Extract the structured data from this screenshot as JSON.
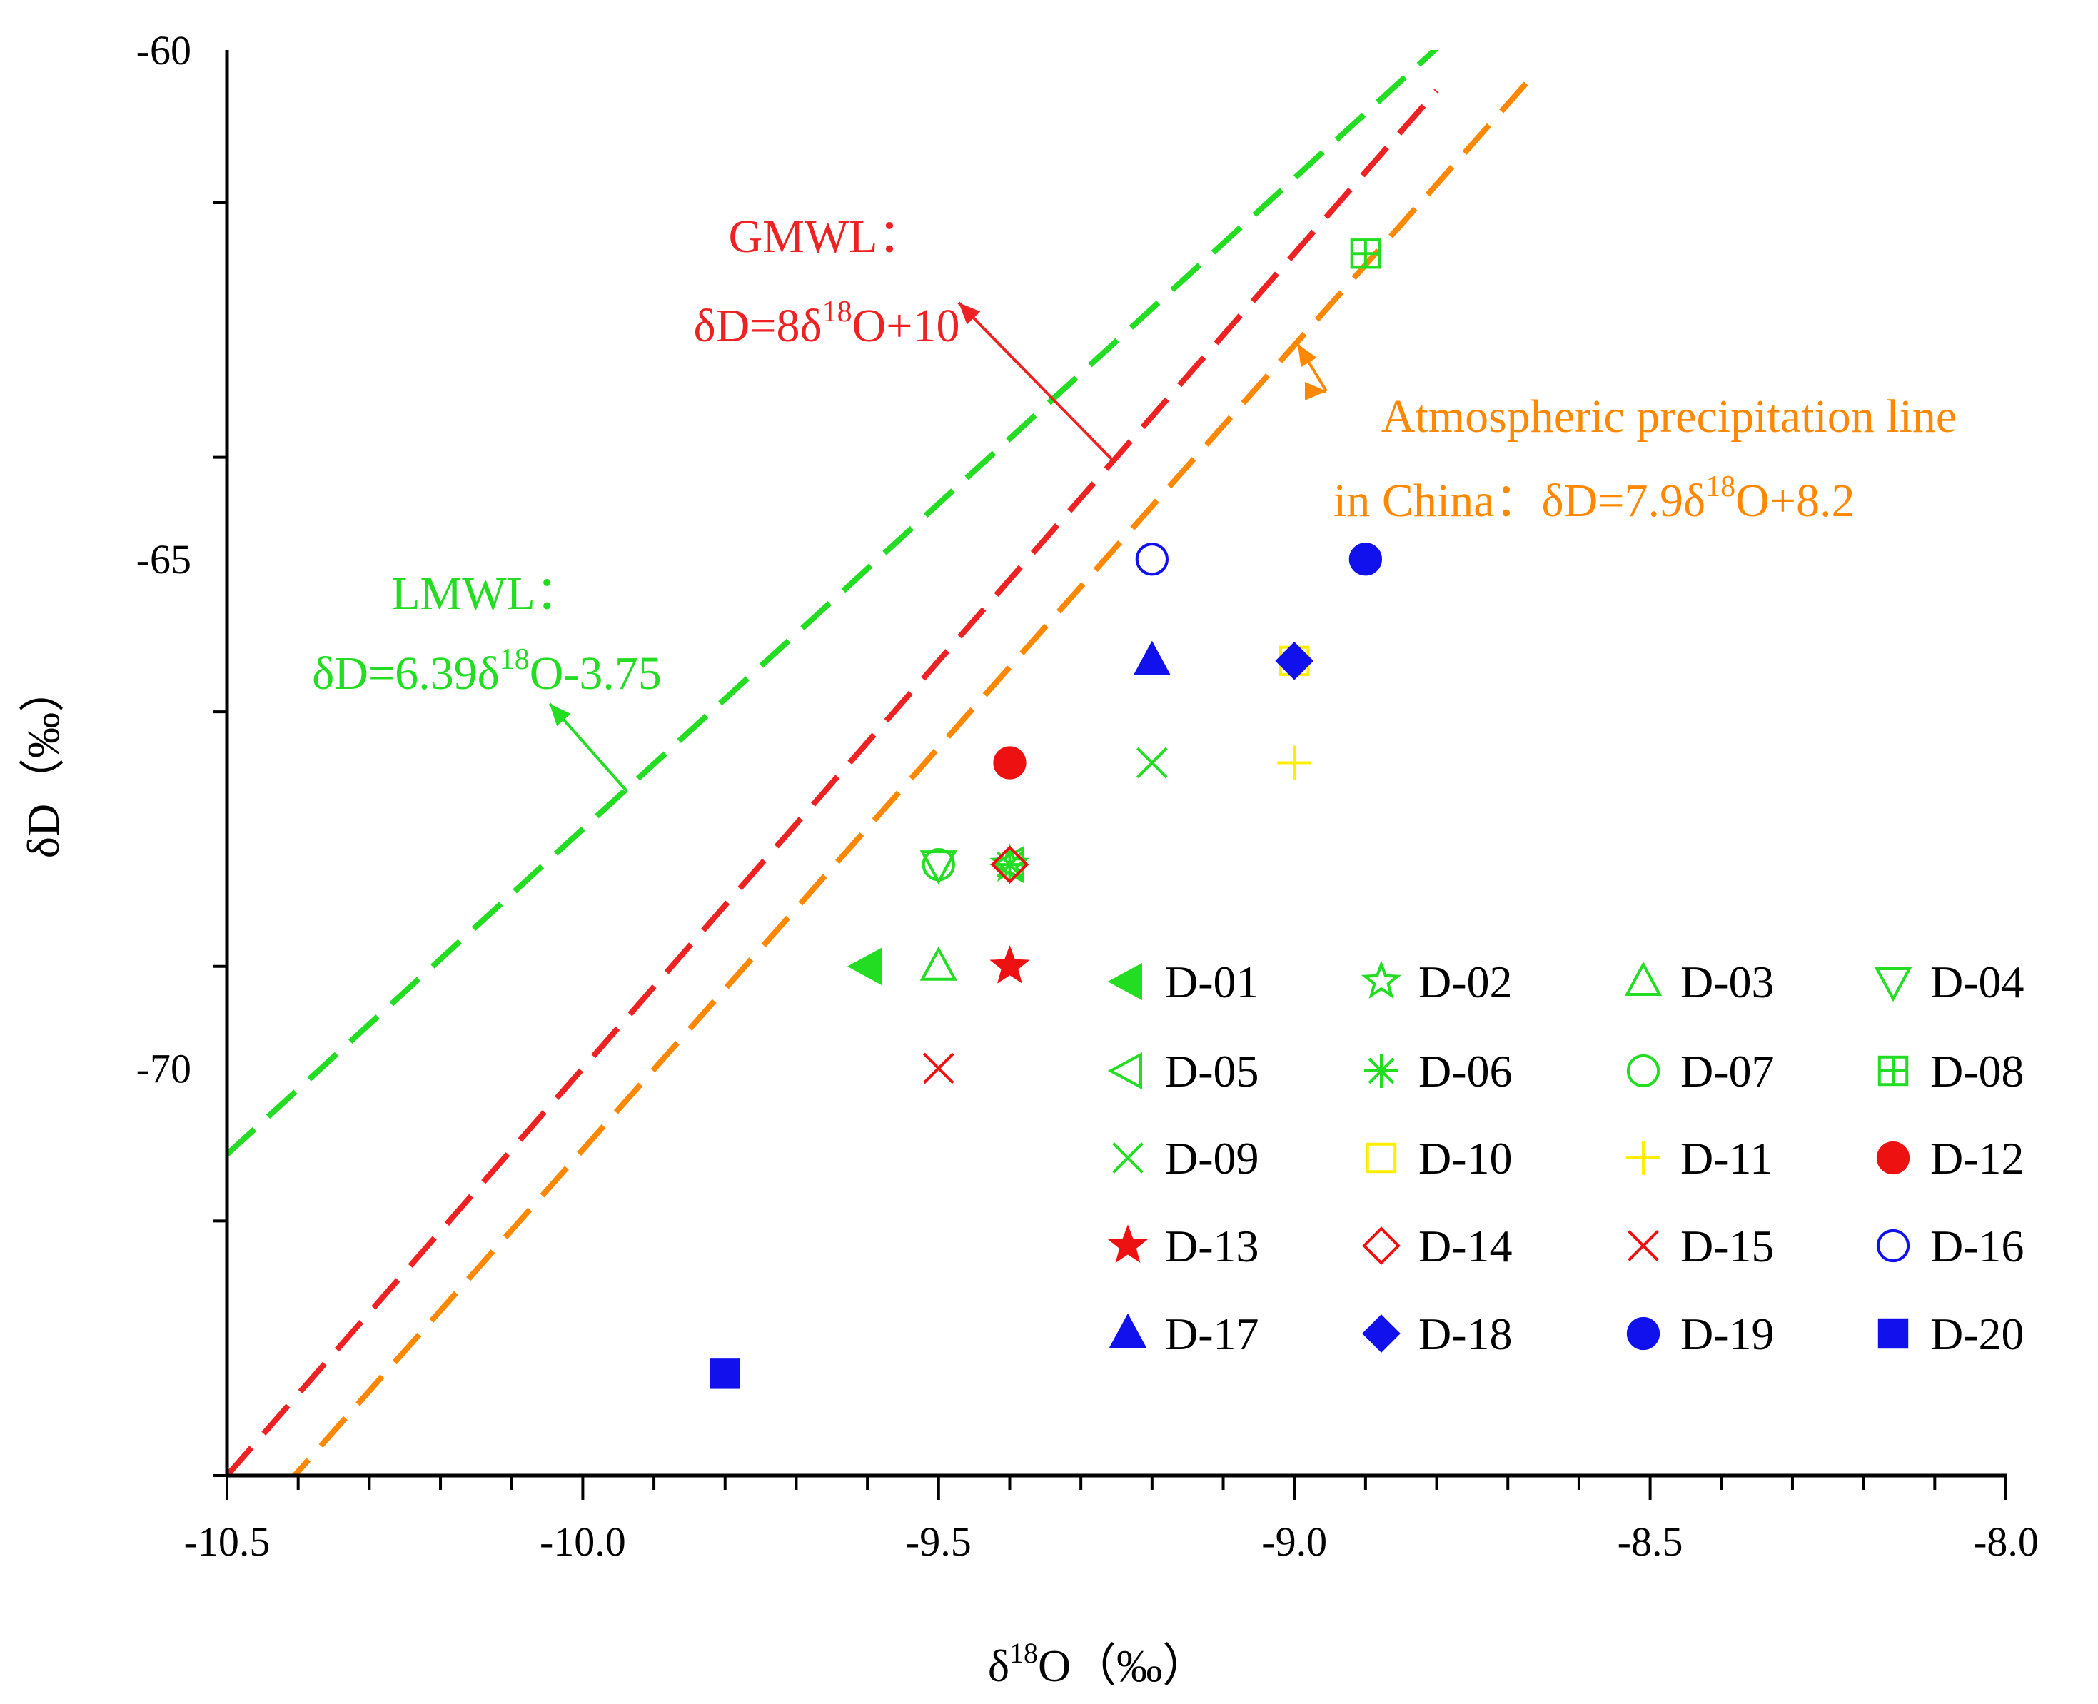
{
  "chart_data": {
    "type": "scatter",
    "xlabel": {
      "prefix": "δ",
      "sup": "18",
      "main": "O（‰）"
    },
    "ylabel": "δD（‰）",
    "xlim": [
      -10.5,
      -8.0
    ],
    "ylim": [
      -74,
      -60
    ],
    "xticks": [
      {
        "value": -10.5,
        "label": "-10.5"
      },
      {
        "value": -10.0,
        "label": "-10.0"
      },
      {
        "value": -9.5,
        "label": "-9.5"
      },
      {
        "value": -9.0,
        "label": "-9.0"
      },
      {
        "value": -8.5,
        "label": "-8.5"
      },
      {
        "value": -8.0,
        "label": "-8.0"
      }
    ],
    "yticks": [
      {
        "value": -60,
        "label": "-60"
      },
      {
        "value": -65,
        "label": "-65"
      },
      {
        "value": -70,
        "label": "-70"
      }
    ],
    "lines": [
      {
        "name": "LMWL",
        "slope": 6.39,
        "intercept": -3.75,
        "color": "#22dd22",
        "x_range": [
          -10.5,
          -8.79
        ]
      },
      {
        "name": "GMWL",
        "slope": 8.0,
        "intercept": 10.0,
        "color": "#ee2222",
        "x_range": [
          -10.5,
          -8.8
        ]
      },
      {
        "name": "Atmospheric precipitation line in China",
        "slope": 7.9,
        "intercept": 8.2,
        "color": "#ff8800",
        "x_range": [
          -10.42,
          -8.66
        ]
      }
    ],
    "annotations": [
      {
        "id": "gmwl",
        "color": "#ee2222",
        "lines": [
          {
            "text": "GMWL："
          },
          {
            "pre": "δD=8δ",
            "sup": "18",
            "post": "O+10"
          }
        ]
      },
      {
        "id": "china",
        "color": "#ff8800",
        "lines": [
          {
            "text": "Atmospheric precipitation line"
          },
          {
            "pre": "in China：δD=7.9δ",
            "sup": "18",
            "post": "O+8.2"
          }
        ]
      },
      {
        "id": "lmwl",
        "color": "#22dd22",
        "lines": [
          {
            "text": "LMWL："
          },
          {
            "pre": "δD=6.39δ",
            "sup": "18",
            "post": "O-3.75"
          }
        ]
      }
    ],
    "series": [
      {
        "name": "D-01",
        "marker": "tri-left",
        "filled": true,
        "color": "#22dd22",
        "x": -9.6,
        "y": -69.0
      },
      {
        "name": "D-02",
        "marker": "star",
        "filled": false,
        "color": "#22dd22",
        "x": -9.4,
        "y": -68.0
      },
      {
        "name": "D-03",
        "marker": "tri-up",
        "filled": false,
        "color": "#22dd22",
        "x": -9.5,
        "y": -69.0
      },
      {
        "name": "D-04",
        "marker": "tri-down",
        "filled": false,
        "color": "#22dd22",
        "x": -9.5,
        "y": -68.0
      },
      {
        "name": "D-05",
        "marker": "tri-left",
        "filled": false,
        "color": "#22dd22",
        "x": -9.4,
        "y": -68.0
      },
      {
        "name": "D-06",
        "marker": "asterisk",
        "filled": false,
        "color": "#22dd22",
        "x": -9.4,
        "y": -68.0
      },
      {
        "name": "D-07",
        "marker": "circle",
        "filled": false,
        "color": "#22dd22",
        "x": -9.5,
        "y": -68.0
      },
      {
        "name": "D-08",
        "marker": "square-plus",
        "filled": false,
        "color": "#22dd22",
        "x": -8.9,
        "y": -62.0
      },
      {
        "name": "D-09",
        "marker": "cross",
        "filled": false,
        "color": "#22dd22",
        "x": -9.2,
        "y": -67.0
      },
      {
        "name": "D-10",
        "marker": "square",
        "filled": false,
        "color": "#ffee00",
        "x": -9.0,
        "y": -66.0
      },
      {
        "name": "D-11",
        "marker": "plus",
        "filled": false,
        "color": "#ffee00",
        "x": -9.0,
        "y": -67.0
      },
      {
        "name": "D-12",
        "marker": "circle",
        "filled": true,
        "color": "#ee1111",
        "x": -9.4,
        "y": -67.0
      },
      {
        "name": "D-13",
        "marker": "star",
        "filled": true,
        "color": "#ee1111",
        "x": -9.4,
        "y": -69.0
      },
      {
        "name": "D-14",
        "marker": "diamond",
        "filled": false,
        "color": "#ee1111",
        "x": -9.4,
        "y": -68.0
      },
      {
        "name": "D-15",
        "marker": "cross",
        "filled": false,
        "color": "#ee1111",
        "x": -9.5,
        "y": -70.0
      },
      {
        "name": "D-16",
        "marker": "circle",
        "filled": false,
        "color": "#1111ee",
        "x": -9.2,
        "y": -65.0
      },
      {
        "name": "D-17",
        "marker": "tri-up",
        "filled": true,
        "color": "#1111ee",
        "x": -9.2,
        "y": -66.0
      },
      {
        "name": "D-18",
        "marker": "diamond",
        "filled": true,
        "color": "#1111ee",
        "x": -9.0,
        "y": -66.0
      },
      {
        "name": "D-19",
        "marker": "circle",
        "filled": true,
        "color": "#1111ee",
        "x": -8.9,
        "y": -65.0
      },
      {
        "name": "D-20",
        "marker": "square",
        "filled": true,
        "color": "#1111ee",
        "x": -9.8,
        "y": -73.0
      }
    ],
    "legend": {
      "position": "bottom-right",
      "columns": 4
    }
  }
}
